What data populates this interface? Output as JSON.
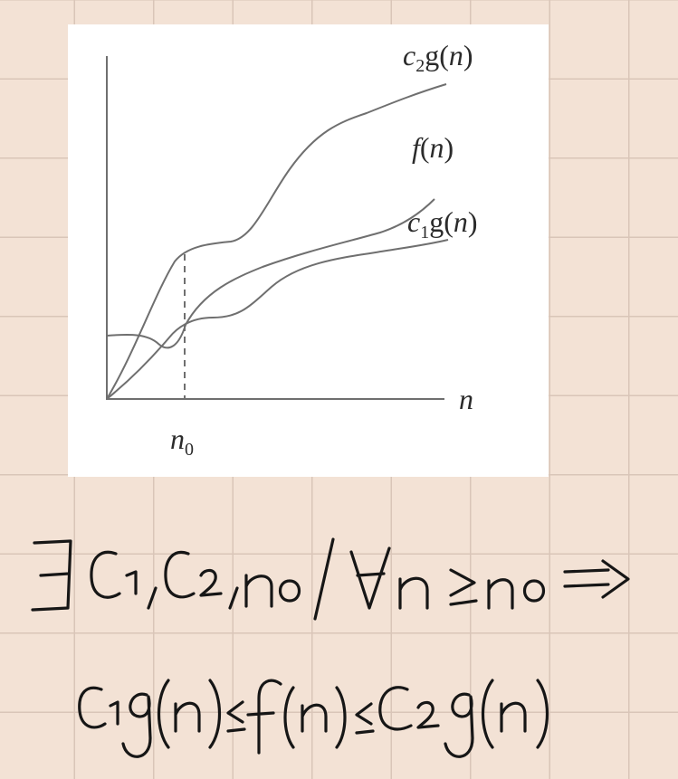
{
  "figure": {
    "labels": {
      "c2g": {
        "pre": "c",
        "sub": "2",
        "post": "g(",
        "arg": "n",
        "close": ")"
      },
      "f": {
        "fn": "f",
        "open": "(",
        "arg": "n",
        "close": ")"
      },
      "c1g": {
        "pre": "c",
        "sub": "1",
        "post": "g(",
        "arg": "n",
        "close": ")"
      },
      "x_axis": "n",
      "n0": {
        "base": "n",
        "sub": "0"
      }
    }
  },
  "handwritten": {
    "line1": "∃ c₁, c₂, n₀ / ∀n ≥ n₀ ⇒",
    "line2": "c₁g(n) ≤ f(n) ≤ c₂g(n)"
  }
}
